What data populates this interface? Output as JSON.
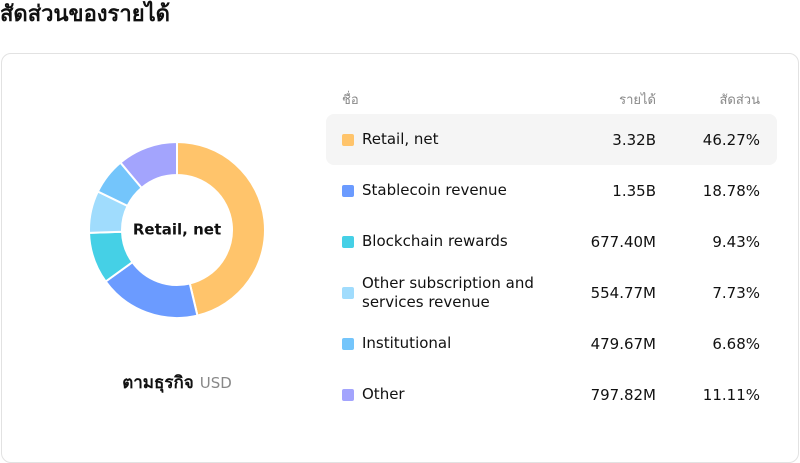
{
  "chart_data": {
    "type": "pie",
    "title": "สัดส่วนของรายได้",
    "subtitle": "ตามธุรกิจ",
    "currency": "USD",
    "name_header": "ชื่อ",
    "selected": 0,
    "categories": [
      "Retail, net",
      "Stablecoin revenue",
      "Blockchain rewards",
      "Other subscription and services revenue",
      "Institutional",
      "Other"
    ],
    "colors": [
      "#ffc46b",
      "#6b9bff",
      "#45d0e6",
      "#a0dcfd",
      "#74c5fb",
      "#a3a4fd"
    ],
    "series": [
      {
        "name": "รายได้",
        "values": [
          3320000000,
          1350000000,
          677400000,
          554770000,
          479670000,
          797820000
        ],
        "value_labels": [
          "3.32B",
          "1.35B",
          "677.40M",
          "554.77M",
          "479.67M",
          "797.82M"
        ]
      },
      {
        "name": "สัดส่วน",
        "values": [
          46.27,
          18.78,
          9.43,
          7.73,
          6.68,
          11.11
        ],
        "value_labels": [
          "46.27%",
          "18.78%",
          "9.43%",
          "7.73%",
          "6.68%",
          "11.11%"
        ]
      }
    ]
  }
}
